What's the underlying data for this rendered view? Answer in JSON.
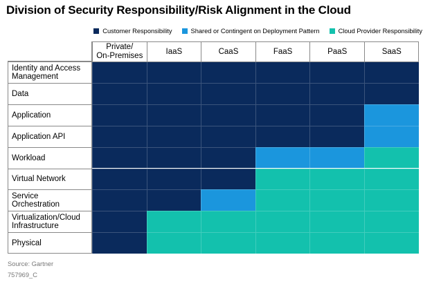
{
  "title": "Division of Security Responsibility/Risk Alignment in the Cloud",
  "legend": [
    {
      "label": "Customer Responsibility",
      "color": "#0a2a5c"
    },
    {
      "label": "Shared or Contingent on Deployment Pattern",
      "color": "#1b96dd"
    },
    {
      "label": "Cloud Provider Responsibility",
      "color": "#13c1ad"
    }
  ],
  "source": "Source: Gartner",
  "code": "757969_C",
  "chart_data": {
    "type": "heatmap",
    "columns": [
      "Private/\nOn-Premises",
      "IaaS",
      "CaaS",
      "FaaS",
      "PaaS",
      "SaaS"
    ],
    "rows": [
      {
        "label": "Identity and Access\nManagement",
        "values": [
          "C",
          "C",
          "C",
          "C",
          "C",
          "C"
        ]
      },
      {
        "label": "Data",
        "values": [
          "C",
          "C",
          "C",
          "C",
          "C",
          "C"
        ]
      },
      {
        "label": "Application",
        "values": [
          "C",
          "C",
          "C",
          "C",
          "C",
          "S"
        ]
      },
      {
        "label": "Application API",
        "values": [
          "C",
          "C",
          "C",
          "C",
          "C",
          "S"
        ]
      },
      {
        "label": "Workload",
        "values": [
          "C",
          "C",
          "C",
          "S",
          "S",
          "P"
        ]
      },
      {
        "label": "Virtual Network",
        "values": [
          "C",
          "C",
          "C",
          "P",
          "P",
          "P"
        ]
      },
      {
        "label": "Service\nOrchestration",
        "values": [
          "C",
          "C",
          "S",
          "P",
          "P",
          "P"
        ]
      },
      {
        "label": "Virtualization/Cloud\nInfrastructure",
        "values": [
          "C",
          "P",
          "P",
          "P",
          "P",
          "P"
        ]
      },
      {
        "label": "Physical",
        "values": [
          "C",
          "P",
          "P",
          "P",
          "P",
          "P"
        ]
      }
    ],
    "categories": {
      "C": "Customer Responsibility",
      "S": "Shared or Contingent on Deployment Pattern",
      "P": "Cloud Provider Responsibility"
    },
    "colors": {
      "C": "#0a2a5c",
      "S": "#1b96dd",
      "P": "#13c1ad"
    }
  }
}
